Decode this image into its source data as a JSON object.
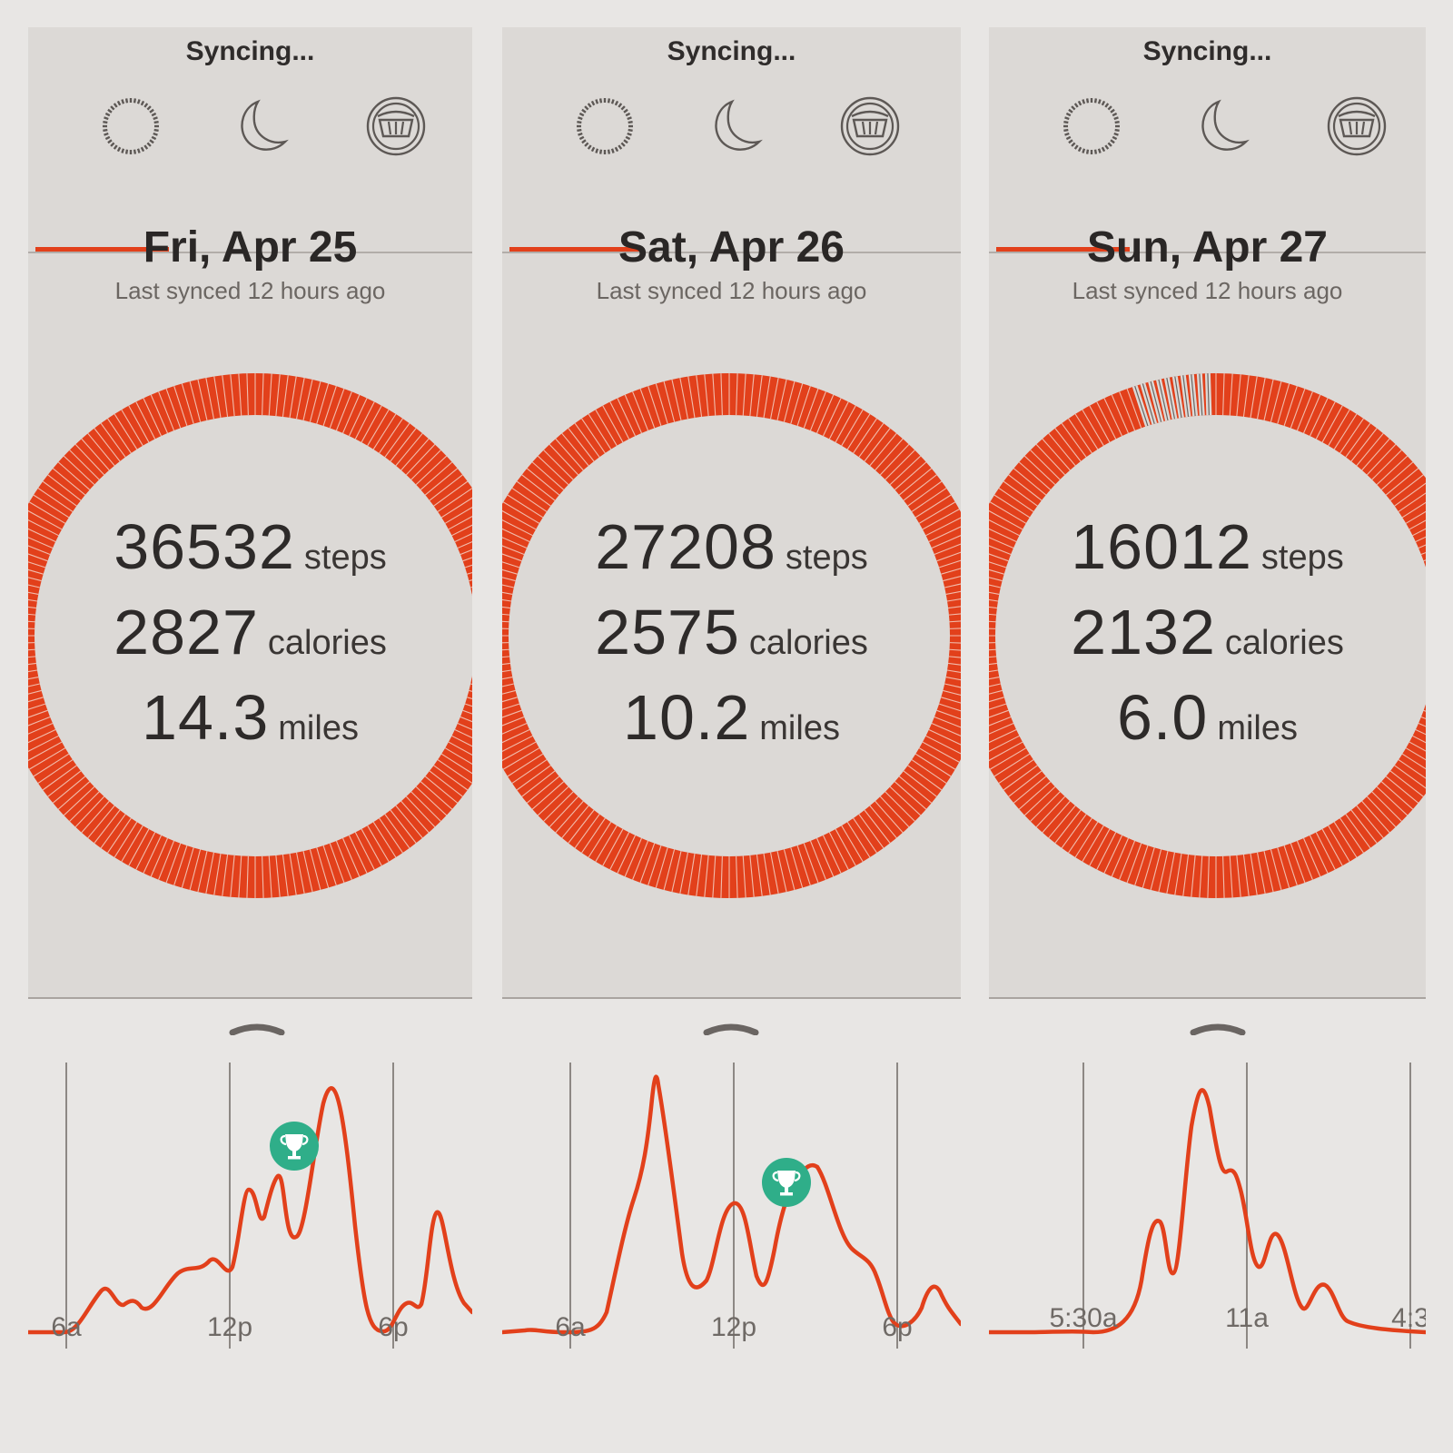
{
  "accent_color": "#e2401b",
  "trophy_color": "#2fae89",
  "panels": [
    {
      "status": "Syncing...",
      "tabs": [
        {
          "icon": "activity-ring-icon",
          "active": true
        },
        {
          "icon": "moon-icon",
          "active": false
        },
        {
          "icon": "food-bowl-icon",
          "active": false
        }
      ],
      "date": "Fri, Apr 25",
      "last_synced": "Last synced 12 hours ago",
      "ring_progress": 1.0,
      "stats": {
        "steps": {
          "value": "36532",
          "unit": "steps"
        },
        "calories": {
          "value": "2827",
          "unit": "calories"
        },
        "distance": {
          "value": "14.3",
          "unit": "miles"
        }
      },
      "graph": {
        "x_labels": [
          "6a",
          "12p",
          "6p"
        ],
        "has_trophy": true
      }
    },
    {
      "status": "Syncing...",
      "tabs": [
        {
          "icon": "activity-ring-icon",
          "active": true
        },
        {
          "icon": "moon-icon",
          "active": false
        },
        {
          "icon": "food-bowl-icon",
          "active": false
        }
      ],
      "date": "Sat, Apr 26",
      "last_synced": "Last synced 12 hours ago",
      "ring_progress": 1.0,
      "stats": {
        "steps": {
          "value": "27208",
          "unit": "steps"
        },
        "calories": {
          "value": "2575",
          "unit": "calories"
        },
        "distance": {
          "value": "10.2",
          "unit": "miles"
        }
      },
      "graph": {
        "x_labels": [
          "6a",
          "12p",
          "6p"
        ],
        "has_trophy": true
      }
    },
    {
      "status": "Syncing...",
      "tabs": [
        {
          "icon": "activity-ring-icon",
          "active": true
        },
        {
          "icon": "moon-icon",
          "active": false
        },
        {
          "icon": "food-bowl-icon",
          "active": false
        }
      ],
      "date": "Sun, Apr 27",
      "last_synced": "Last synced 12 hours ago",
      "ring_progress": 0.95,
      "stats": {
        "steps": {
          "value": "16012",
          "unit": "steps"
        },
        "calories": {
          "value": "2132",
          "unit": "calories"
        },
        "distance": {
          "value": "6.0",
          "unit": "miles"
        }
      },
      "graph": {
        "x_labels": [
          "5:30a",
          "11a",
          "4:3"
        ],
        "has_trophy": false
      }
    }
  ]
}
